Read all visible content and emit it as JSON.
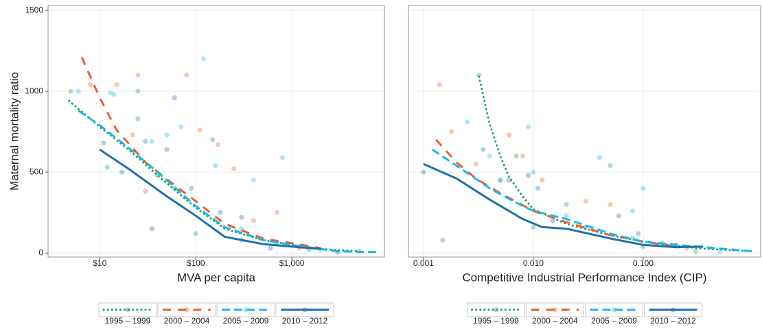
{
  "chart_data": [
    {
      "type": "scatter-line",
      "xlabel": "MVA per capita",
      "ylabel": "Maternal mortality ratio",
      "xscale": "log",
      "xlim": [
        2.9,
        9200
      ],
      "ylim": [
        -25,
        1530
      ],
      "xticks": [
        {
          "value": 10,
          "label": "$10"
        },
        {
          "value": 100,
          "label": "$100"
        },
        {
          "value": 1000,
          "label": "$1,000"
        }
      ],
      "yticks": [
        0,
        500,
        1000,
        1500
      ],
      "show_ytick_labels": true,
      "grid": true,
      "legend": "bottom",
      "series": [
        {
          "name": "1995 – 1999",
          "color": "#1a9e6e",
          "linestyle": "dotted",
          "x": [
            4.8,
            10,
            20,
            40,
            100,
            200,
            500,
            1000,
            2000,
            5000
          ],
          "values": [
            940,
            780,
            640,
            480,
            280,
            150,
            80,
            50,
            25,
            10
          ],
          "scatter_x": [
            5,
            12,
            25,
            25,
            40,
            60,
            100,
            150,
            300,
            700,
            1500,
            5000
          ],
          "scatter_y": [
            1000,
            530,
            830,
            1000,
            480,
            400,
            120,
            700,
            80,
            60,
            20,
            10
          ]
        },
        {
          "name": "2000 – 2004",
          "color": "#e8602c",
          "linestyle": "dashdot",
          "x": [
            6.5,
            10,
            15,
            30,
            60,
            100,
            200,
            500,
            1000,
            2000
          ],
          "values": [
            1210,
            960,
            760,
            560,
            420,
            320,
            180,
            90,
            60,
            30
          ],
          "scatter_x": [
            8,
            15,
            22,
            25,
            30,
            80,
            110,
            170,
            250,
            400,
            700,
            1200
          ],
          "scatter_y": [
            1040,
            1040,
            730,
            1100,
            380,
            1100,
            760,
            670,
            520,
            200,
            250,
            30
          ]
        },
        {
          "name": "2005 – 2009",
          "color": "#1ab8e8",
          "linestyle": "dashed",
          "x": [
            6,
            10,
            20,
            40,
            100,
            200,
            500,
            1000,
            3000,
            8000
          ],
          "values": [
            880,
            790,
            650,
            500,
            290,
            160,
            80,
            50,
            10,
            5
          ],
          "scatter_x": [
            6,
            13,
            14,
            35,
            50,
            70,
            120,
            160,
            300,
            400,
            800,
            2000
          ],
          "scatter_y": [
            1000,
            990,
            980,
            690,
            730,
            780,
            1200,
            540,
            150,
            450,
            590,
            20
          ]
        },
        {
          "name": "2010 – 2012",
          "color": "#1f6fb0",
          "linestyle": "solid",
          "x": [
            10,
            20,
            50,
            100,
            200,
            500,
            1000,
            2000
          ],
          "values": [
            640,
            520,
            350,
            230,
            100,
            55,
            40,
            25
          ],
          "scatter_x": [
            11,
            17,
            30,
            35,
            50,
            60,
            90,
            180,
            300,
            600,
            1200,
            3000
          ],
          "scatter_y": [
            680,
            500,
            690,
            150,
            640,
            960,
            400,
            250,
            220,
            30,
            40,
            5
          ]
        }
      ]
    },
    {
      "type": "scatter-line",
      "xlabel": "Competitive Industrial Performance Index (CIP)",
      "xscale": "log",
      "xlim": [
        0.00073,
        1.17
      ],
      "ylim": [
        -25,
        1530
      ],
      "xticks": [
        {
          "value": 0.001,
          "label": "0.001"
        },
        {
          "value": 0.01,
          "label": "0.010"
        },
        {
          "value": 0.1,
          "label": "0.100"
        }
      ],
      "yticks": [
        0,
        500,
        1000,
        1500
      ],
      "show_ytick_labels": false,
      "grid": true,
      "legend": "bottom",
      "series": [
        {
          "name": "1995 – 1999",
          "color": "#1a9e6e",
          "linestyle": "dotted",
          "x": [
            0.0032,
            0.004,
            0.005,
            0.006,
            0.008,
            0.01,
            0.02,
            0.05,
            0.1,
            0.3,
            1.0
          ],
          "values": [
            1090,
            800,
            600,
            470,
            350,
            270,
            180,
            110,
            70,
            30,
            10
          ],
          "scatter_x": [
            0.0015,
            0.0032,
            0.005,
            0.007,
            0.01,
            0.02,
            0.05,
            0.08,
            0.1,
            0.3
          ],
          "scatter_y": [
            80,
            1100,
            450,
            600,
            160,
            300,
            540,
            90,
            40,
            10
          ]
        },
        {
          "name": "2000 – 2004",
          "color": "#e8602c",
          "linestyle": "dashdot",
          "x": [
            0.0013,
            0.002,
            0.003,
            0.005,
            0.01,
            0.02,
            0.05,
            0.1,
            0.2
          ],
          "values": [
            700,
            560,
            460,
            370,
            260,
            190,
            110,
            70,
            40
          ],
          "scatter_x": [
            0.0014,
            0.0018,
            0.003,
            0.006,
            0.008,
            0.012,
            0.03,
            0.05,
            0.15,
            0.25
          ],
          "scatter_y": [
            1040,
            750,
            550,
            730,
            600,
            450,
            320,
            300,
            60,
            30
          ]
        },
        {
          "name": "2005 – 2009",
          "color": "#1ab8e8",
          "linestyle": "dashed",
          "x": [
            0.0012,
            0.002,
            0.004,
            0.007,
            0.01,
            0.02,
            0.05,
            0.1,
            0.3,
            1.0
          ],
          "values": [
            640,
            540,
            400,
            310,
            260,
            210,
            120,
            70,
            40,
            10
          ],
          "scatter_x": [
            0.0025,
            0.004,
            0.005,
            0.009,
            0.01,
            0.02,
            0.04,
            0.08,
            0.1,
            0.5
          ],
          "scatter_y": [
            810,
            600,
            450,
            780,
            500,
            230,
            590,
            260,
            400,
            10
          ]
        },
        {
          "name": "2010 – 2012",
          "color": "#1f6fb0",
          "linestyle": "solid",
          "x": [
            0.001,
            0.002,
            0.004,
            0.008,
            0.012,
            0.02,
            0.05,
            0.1,
            0.2,
            0.35
          ],
          "values": [
            550,
            460,
            330,
            210,
            160,
            150,
            90,
            50,
            35,
            40
          ],
          "scatter_x": [
            0.001,
            0.0035,
            0.006,
            0.009,
            0.011,
            0.015,
            0.03,
            0.06,
            0.09,
            0.2
          ],
          "scatter_y": [
            500,
            640,
            450,
            480,
            400,
            200,
            160,
            230,
            120,
            50
          ]
        }
      ]
    }
  ]
}
